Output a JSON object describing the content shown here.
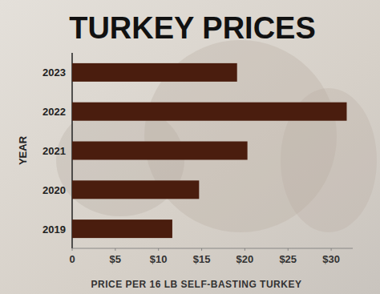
{
  "chart_data": {
    "type": "bar",
    "orientation": "horizontal",
    "title": "TURKEY PRICES",
    "y_label": "YEAR",
    "x_label": "PRICE PER 16 LB SELF-BASTING TURKEY",
    "categories": [
      "2023",
      "2022",
      "2021",
      "2020",
      "2019"
    ],
    "values": [
      19.1,
      31.8,
      20.3,
      14.7,
      11.6
    ],
    "color": "#4a1d0e",
    "xlim": [
      0,
      32.5
    ],
    "xticks": [
      0,
      {
        "value": 5,
        "label": "$5"
      },
      {
        "value": 10,
        "label": "$10"
      },
      {
        "value": 15,
        "label": "$15"
      },
      {
        "value": 20,
        "label": "$20"
      },
      {
        "value": 25,
        "label": "$25"
      },
      {
        "value": 30,
        "label": "$30"
      }
    ],
    "grid": false
  }
}
